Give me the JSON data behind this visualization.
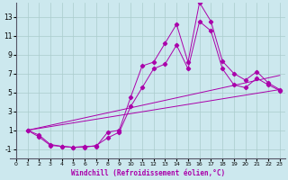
{
  "title": "",
  "xlabel": "Windchill (Refroidissement éolien,°C)",
  "background_color": "#cce8ee",
  "line_color": "#aa00aa",
  "grid_color": "#aacccc",
  "xlim": [
    -0.5,
    23.5
  ],
  "ylim": [
    -2.0,
    14.5
  ],
  "xticks": [
    0,
    1,
    2,
    3,
    4,
    5,
    6,
    7,
    8,
    9,
    10,
    11,
    12,
    13,
    14,
    15,
    16,
    17,
    18,
    19,
    20,
    21,
    22,
    23
  ],
  "yticks": [
    -1,
    1,
    3,
    5,
    7,
    9,
    11,
    13
  ],
  "line1": {
    "x": [
      1,
      2,
      3,
      4,
      5,
      6,
      7,
      8,
      9,
      10,
      11,
      12,
      13,
      14,
      15,
      16,
      17,
      18,
      19,
      20,
      21,
      22,
      23
    ],
    "y": [
      1.0,
      0.5,
      -0.5,
      -0.7,
      -0.8,
      -0.7,
      -0.7,
      0.8,
      1.0,
      4.5,
      7.8,
      8.2,
      10.2,
      12.2,
      8.2,
      14.5,
      12.5,
      8.3,
      7.0,
      6.3,
      7.2,
      6.0,
      5.3
    ]
  },
  "line2": {
    "x": [
      1,
      2,
      3,
      4,
      5,
      6,
      7,
      8,
      9,
      10,
      11,
      12,
      13,
      14,
      15,
      16,
      17,
      18,
      19,
      20,
      21,
      22,
      23
    ],
    "y": [
      1.0,
      0.3,
      -0.6,
      -0.7,
      -0.8,
      -0.8,
      -0.6,
      0.2,
      0.8,
      3.5,
      5.5,
      7.5,
      8.0,
      10.0,
      7.5,
      12.5,
      11.5,
      7.5,
      5.8,
      5.5,
      6.5,
      5.8,
      5.2
    ]
  },
  "line3": {
    "x": [
      1,
      23
    ],
    "y": [
      1.0,
      5.3
    ]
  },
  "line4": {
    "x": [
      1,
      23
    ],
    "y": [
      1.0,
      6.8
    ]
  }
}
